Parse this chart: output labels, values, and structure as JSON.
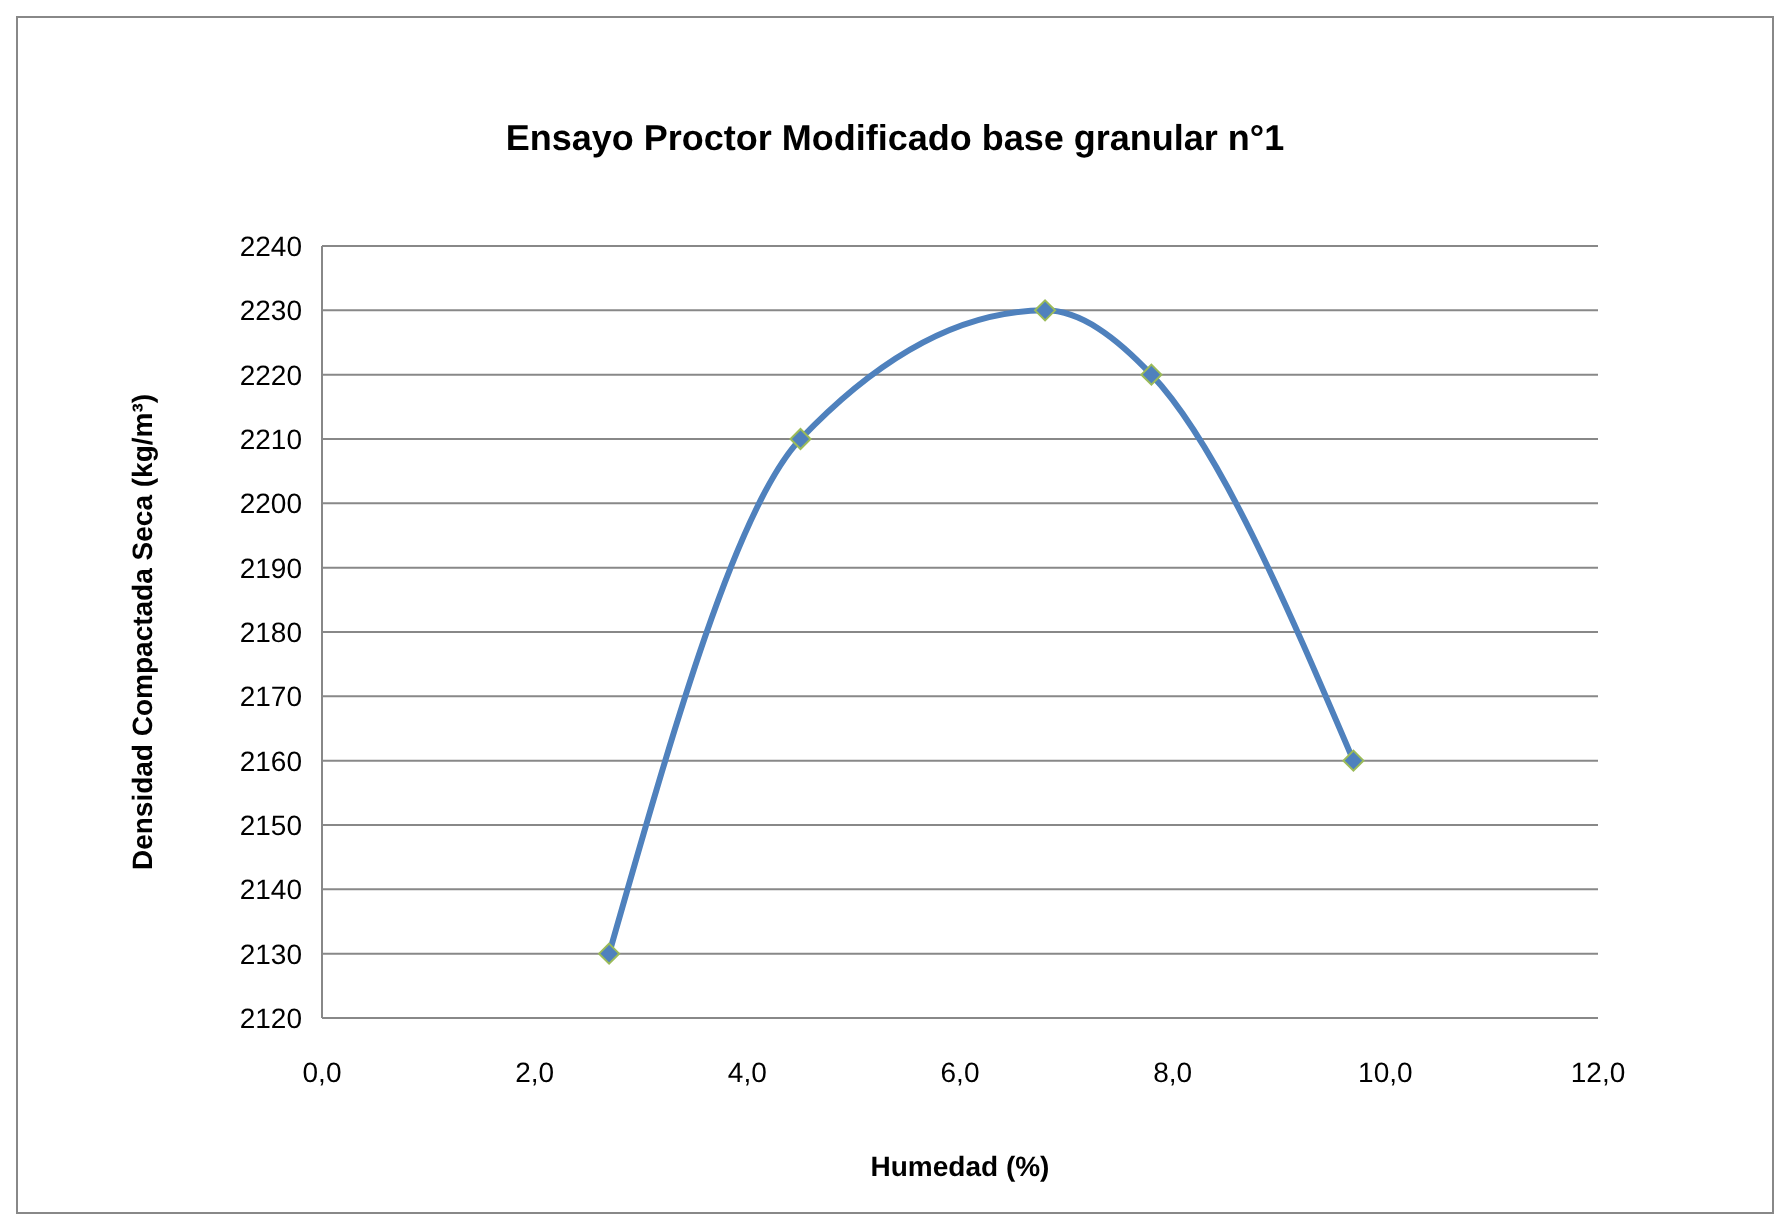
{
  "chart_data": {
    "type": "line",
    "title": "Ensayo Proctor Modificado base granular n°1",
    "xlabel": "Humedad (%)",
    "ylabel": "Densidad Compactada Seca (kg/m³)",
    "x": [
      2.7,
      4.5,
      6.8,
      7.8,
      9.7
    ],
    "series": [
      {
        "color": "#4f81bd",
        "values": [
          2130,
          2210,
          2230,
          2220,
          2160
        ]
      }
    ],
    "xlim": [
      0,
      12
    ],
    "xticks": [
      {
        "value": 0,
        "label": "0,0"
      },
      {
        "value": 2,
        "label": "2,0"
      },
      {
        "value": 4,
        "label": "4,0"
      },
      {
        "value": 6,
        "label": "6,0"
      },
      {
        "value": 8,
        "label": "8,0"
      },
      {
        "value": 10,
        "label": "10,0"
      },
      {
        "value": 12,
        "label": "12,0"
      }
    ],
    "ylim": [
      2120,
      2240
    ],
    "yticks": [
      2120,
      2130,
      2140,
      2150,
      2160,
      2170,
      2180,
      2190,
      2200,
      2210,
      2220,
      2230,
      2240
    ],
    "grid": "y",
    "marker": "diamond",
    "line_style": "solid"
  }
}
